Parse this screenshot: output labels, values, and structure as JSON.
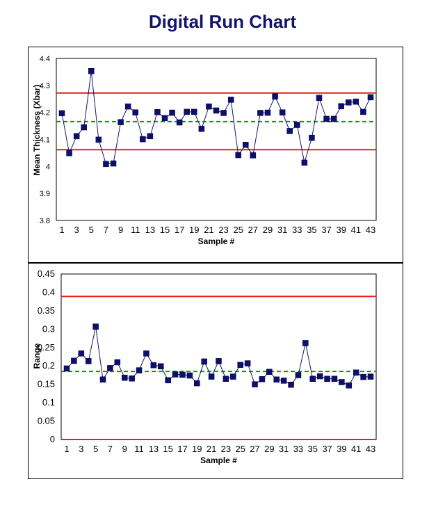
{
  "page_title": "Digital Run Chart",
  "colors": {
    "title": "#12136b",
    "series": "#12136b",
    "marker": "#0d0f6e",
    "control_limit": "#e0201b",
    "center_line": "#1f8a1f"
  },
  "chart_data": [
    {
      "type": "line",
      "name": "xbar-chart",
      "title": "",
      "xlabel": "Sample #",
      "ylabel": "Mean Thickness (Xbar)",
      "x": [
        1,
        2,
        3,
        4,
        5,
        6,
        7,
        8,
        9,
        10,
        11,
        12,
        13,
        14,
        15,
        16,
        17,
        18,
        19,
        20,
        21,
        22,
        23,
        24,
        25,
        26,
        27,
        28,
        29,
        30,
        31,
        32,
        33,
        34,
        35,
        36,
        37,
        38,
        39,
        40,
        41,
        42,
        43
      ],
      "x_tick_labels": [
        "1",
        "3",
        "5",
        "7",
        "9",
        "11",
        "13",
        "15",
        "17",
        "19",
        "21",
        "23",
        "25",
        "27",
        "29",
        "31",
        "33",
        "35",
        "37",
        "39",
        "41",
        "43"
      ],
      "y_tick_labels": [
        "3.8",
        "3.9",
        "4",
        "4.1",
        "4.2",
        "4.3",
        "4.4"
      ],
      "ylim": [
        3.8,
        4.4
      ],
      "values": [
        4.197,
        4.049,
        4.112,
        4.145,
        4.353,
        4.099,
        4.009,
        4.011,
        4.164,
        4.222,
        4.2,
        4.101,
        4.112,
        4.201,
        4.179,
        4.199,
        4.163,
        4.202,
        4.202,
        4.139,
        4.222,
        4.207,
        4.198,
        4.247,
        4.042,
        4.08,
        4.041,
        4.198,
        4.199,
        4.259,
        4.2,
        4.131,
        4.154,
        4.014,
        4.106,
        4.254,
        4.176,
        4.176,
        4.223,
        4.237,
        4.24,
        4.202,
        4.256
      ],
      "upper_limit": 4.272,
      "center_line": 4.166,
      "lower_limit": 4.062,
      "grid": false,
      "legend": "none"
    },
    {
      "type": "line",
      "name": "range-chart",
      "title": "",
      "xlabel": "Sample #",
      "ylabel": "Range",
      "x": [
        1,
        2,
        3,
        4,
        5,
        6,
        7,
        8,
        9,
        10,
        11,
        12,
        13,
        14,
        15,
        16,
        17,
        18,
        19,
        20,
        21,
        22,
        23,
        24,
        25,
        26,
        27,
        28,
        29,
        30,
        31,
        32,
        33,
        34,
        35,
        36,
        37,
        38,
        39,
        40,
        41,
        42,
        43
      ],
      "x_tick_labels": [
        "1",
        "3",
        "5",
        "7",
        "9",
        "11",
        "13",
        "15",
        "17",
        "19",
        "21",
        "23",
        "25",
        "27",
        "29",
        "31",
        "33",
        "35",
        "37",
        "39",
        "41",
        "43"
      ],
      "y_tick_labels": [
        "0",
        "0.05",
        "0.1",
        "0.15",
        "0.2",
        "0.25",
        "0.3",
        "0.35",
        "0.4",
        "0.45"
      ],
      "ylim": [
        0,
        0.45
      ],
      "values": [
        0.193,
        0.214,
        0.234,
        0.213,
        0.307,
        0.163,
        0.194,
        0.21,
        0.168,
        0.166,
        0.188,
        0.234,
        0.202,
        0.199,
        0.161,
        0.177,
        0.176,
        0.174,
        0.153,
        0.212,
        0.171,
        0.213,
        0.165,
        0.171,
        0.203,
        0.207,
        0.15,
        0.164,
        0.184,
        0.163,
        0.16,
        0.149,
        0.175,
        0.262,
        0.165,
        0.172,
        0.165,
        0.165,
        0.156,
        0.147,
        0.182,
        0.17,
        0.171
      ],
      "upper_limit": 0.389,
      "center_line": 0.185,
      "lower_limit": 0,
      "grid": false,
      "legend": "none"
    }
  ]
}
